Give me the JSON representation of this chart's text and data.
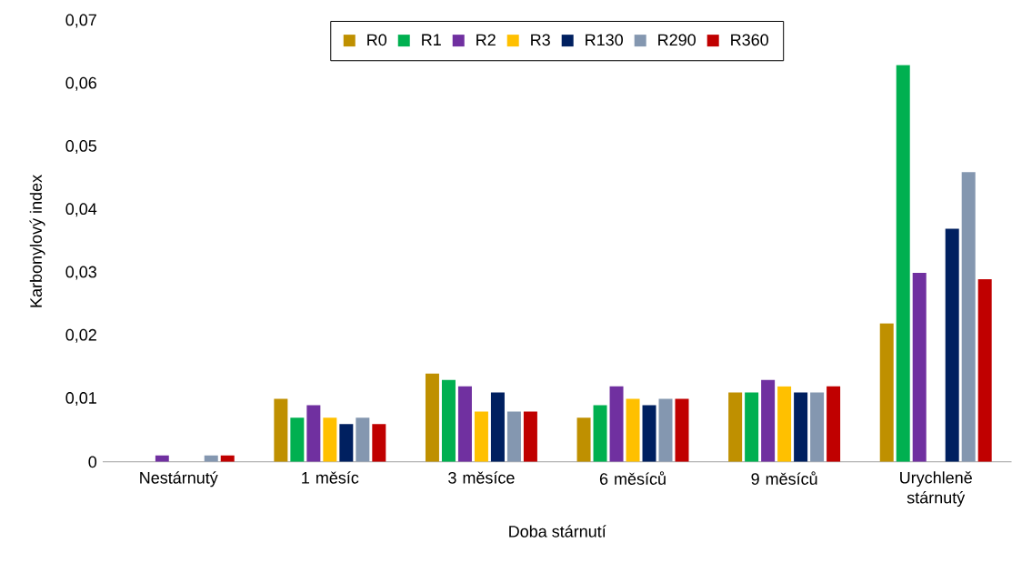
{
  "chart_data": {
    "type": "bar",
    "xlabel": "Doba stárnutí",
    "ylabel": "Karbonylový index",
    "categories": [
      "Nestárnutý",
      "1 měsíc",
      "3 měsíce",
      "6 měsíců",
      "9 měsíců",
      "Urychleně stárnutý"
    ],
    "ylim": [
      0,
      0.07
    ],
    "yticks": [
      {
        "value": 0,
        "label": "0"
      },
      {
        "value": 0.01,
        "label": "0,01"
      },
      {
        "value": 0.02,
        "label": "0,02"
      },
      {
        "value": 0.03,
        "label": "0,03"
      },
      {
        "value": 0.04,
        "label": "0,04"
      },
      {
        "value": 0.05,
        "label": "0,05"
      },
      {
        "value": 0.06,
        "label": "0,06"
      },
      {
        "value": 0.07,
        "label": "0,07"
      }
    ],
    "legend": "top",
    "grid": false,
    "series": [
      {
        "name": "R0",
        "color": "#bf9000",
        "values": [
          0,
          0.01,
          0.014,
          0.007,
          0.011,
          0.022
        ]
      },
      {
        "name": "R1",
        "color": "#00b050",
        "values": [
          0,
          0.007,
          0.013,
          0.009,
          0.011,
          0.063
        ]
      },
      {
        "name": "R2",
        "color": "#7030a0",
        "values": [
          0.001,
          0.009,
          0.012,
          0.012,
          0.013,
          0.03
        ]
      },
      {
        "name": "R3",
        "color": "#ffc000",
        "values": [
          0,
          0.007,
          0.008,
          0.01,
          0.012,
          0
        ]
      },
      {
        "name": "R130",
        "color": "#002060",
        "values": [
          0,
          0.006,
          0.011,
          0.009,
          0.011,
          0.037
        ]
      },
      {
        "name": "R290",
        "color": "#8497b0",
        "values": [
          0.001,
          0.007,
          0.008,
          0.01,
          0.011,
          0.046
        ]
      },
      {
        "name": "R360",
        "color": "#c00000",
        "values": [
          0.001,
          0.006,
          0.008,
          0.01,
          0.012,
          0.029
        ]
      }
    ]
  }
}
